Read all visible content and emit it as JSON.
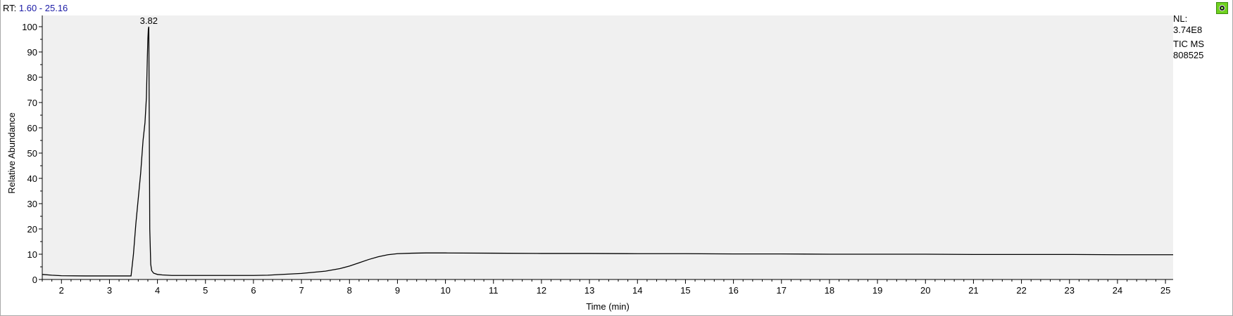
{
  "header": {
    "rt_prefix": "RT:",
    "rt_range": "1.60 - 25.16"
  },
  "info": {
    "nl_label": "NL:",
    "nl_value": "3.74E8",
    "scan_type": "TIC  MS",
    "sample": "808525"
  },
  "chart_data": {
    "type": "line",
    "xlabel": "Time (min)",
    "ylabel": "Relative Abundance",
    "xlim": [
      1.6,
      25.16
    ],
    "ylim": [
      0,
      100
    ],
    "x_ticks": [
      2,
      3,
      4,
      5,
      6,
      7,
      8,
      9,
      10,
      11,
      12,
      13,
      14,
      15,
      16,
      17,
      18,
      19,
      20,
      21,
      22,
      23,
      24,
      25
    ],
    "y_ticks": [
      0,
      10,
      20,
      30,
      40,
      50,
      60,
      70,
      80,
      90,
      100
    ],
    "grid": false,
    "peak_labels": [
      {
        "x": 3.82,
        "y": 100,
        "text": "3.82"
      }
    ],
    "series": [
      {
        "x": [
          1.6,
          1.8,
          2.0,
          2.5,
          3.0,
          3.45,
          3.5,
          3.55,
          3.6,
          3.65,
          3.7,
          3.74,
          3.77,
          3.79,
          3.8,
          3.81,
          3.82,
          3.83,
          3.84,
          3.86,
          3.88,
          3.92,
          4.0,
          4.1,
          4.3,
          5.0,
          6.0,
          6.3,
          6.5,
          7.0,
          7.5,
          7.8,
          8.0,
          8.2,
          8.4,
          8.6,
          8.8,
          9.0,
          9.3,
          9.6,
          10.0,
          11.0,
          12.0,
          13.0,
          14.0,
          15.0,
          16.0,
          17.0,
          18.0,
          19.0,
          20.0,
          21.0,
          22.0,
          23.0,
          24.0,
          25.16
        ],
        "y": [
          2.0,
          1.7,
          1.5,
          1.4,
          1.4,
          1.4,
          10,
          22,
          32,
          42,
          55,
          62,
          72,
          88,
          95,
          99,
          100,
          60,
          20,
          6,
          3.5,
          2.5,
          2.0,
          1.8,
          1.6,
          1.6,
          1.6,
          1.7,
          1.9,
          2.4,
          3.3,
          4.3,
          5.3,
          6.6,
          7.9,
          9.0,
          9.8,
          10.2,
          10.4,
          10.5,
          10.5,
          10.4,
          10.3,
          10.3,
          10.2,
          10.2,
          10.1,
          10.1,
          10.0,
          10.0,
          10.0,
          9.9,
          9.9,
          9.9,
          9.8,
          9.8
        ]
      }
    ]
  }
}
